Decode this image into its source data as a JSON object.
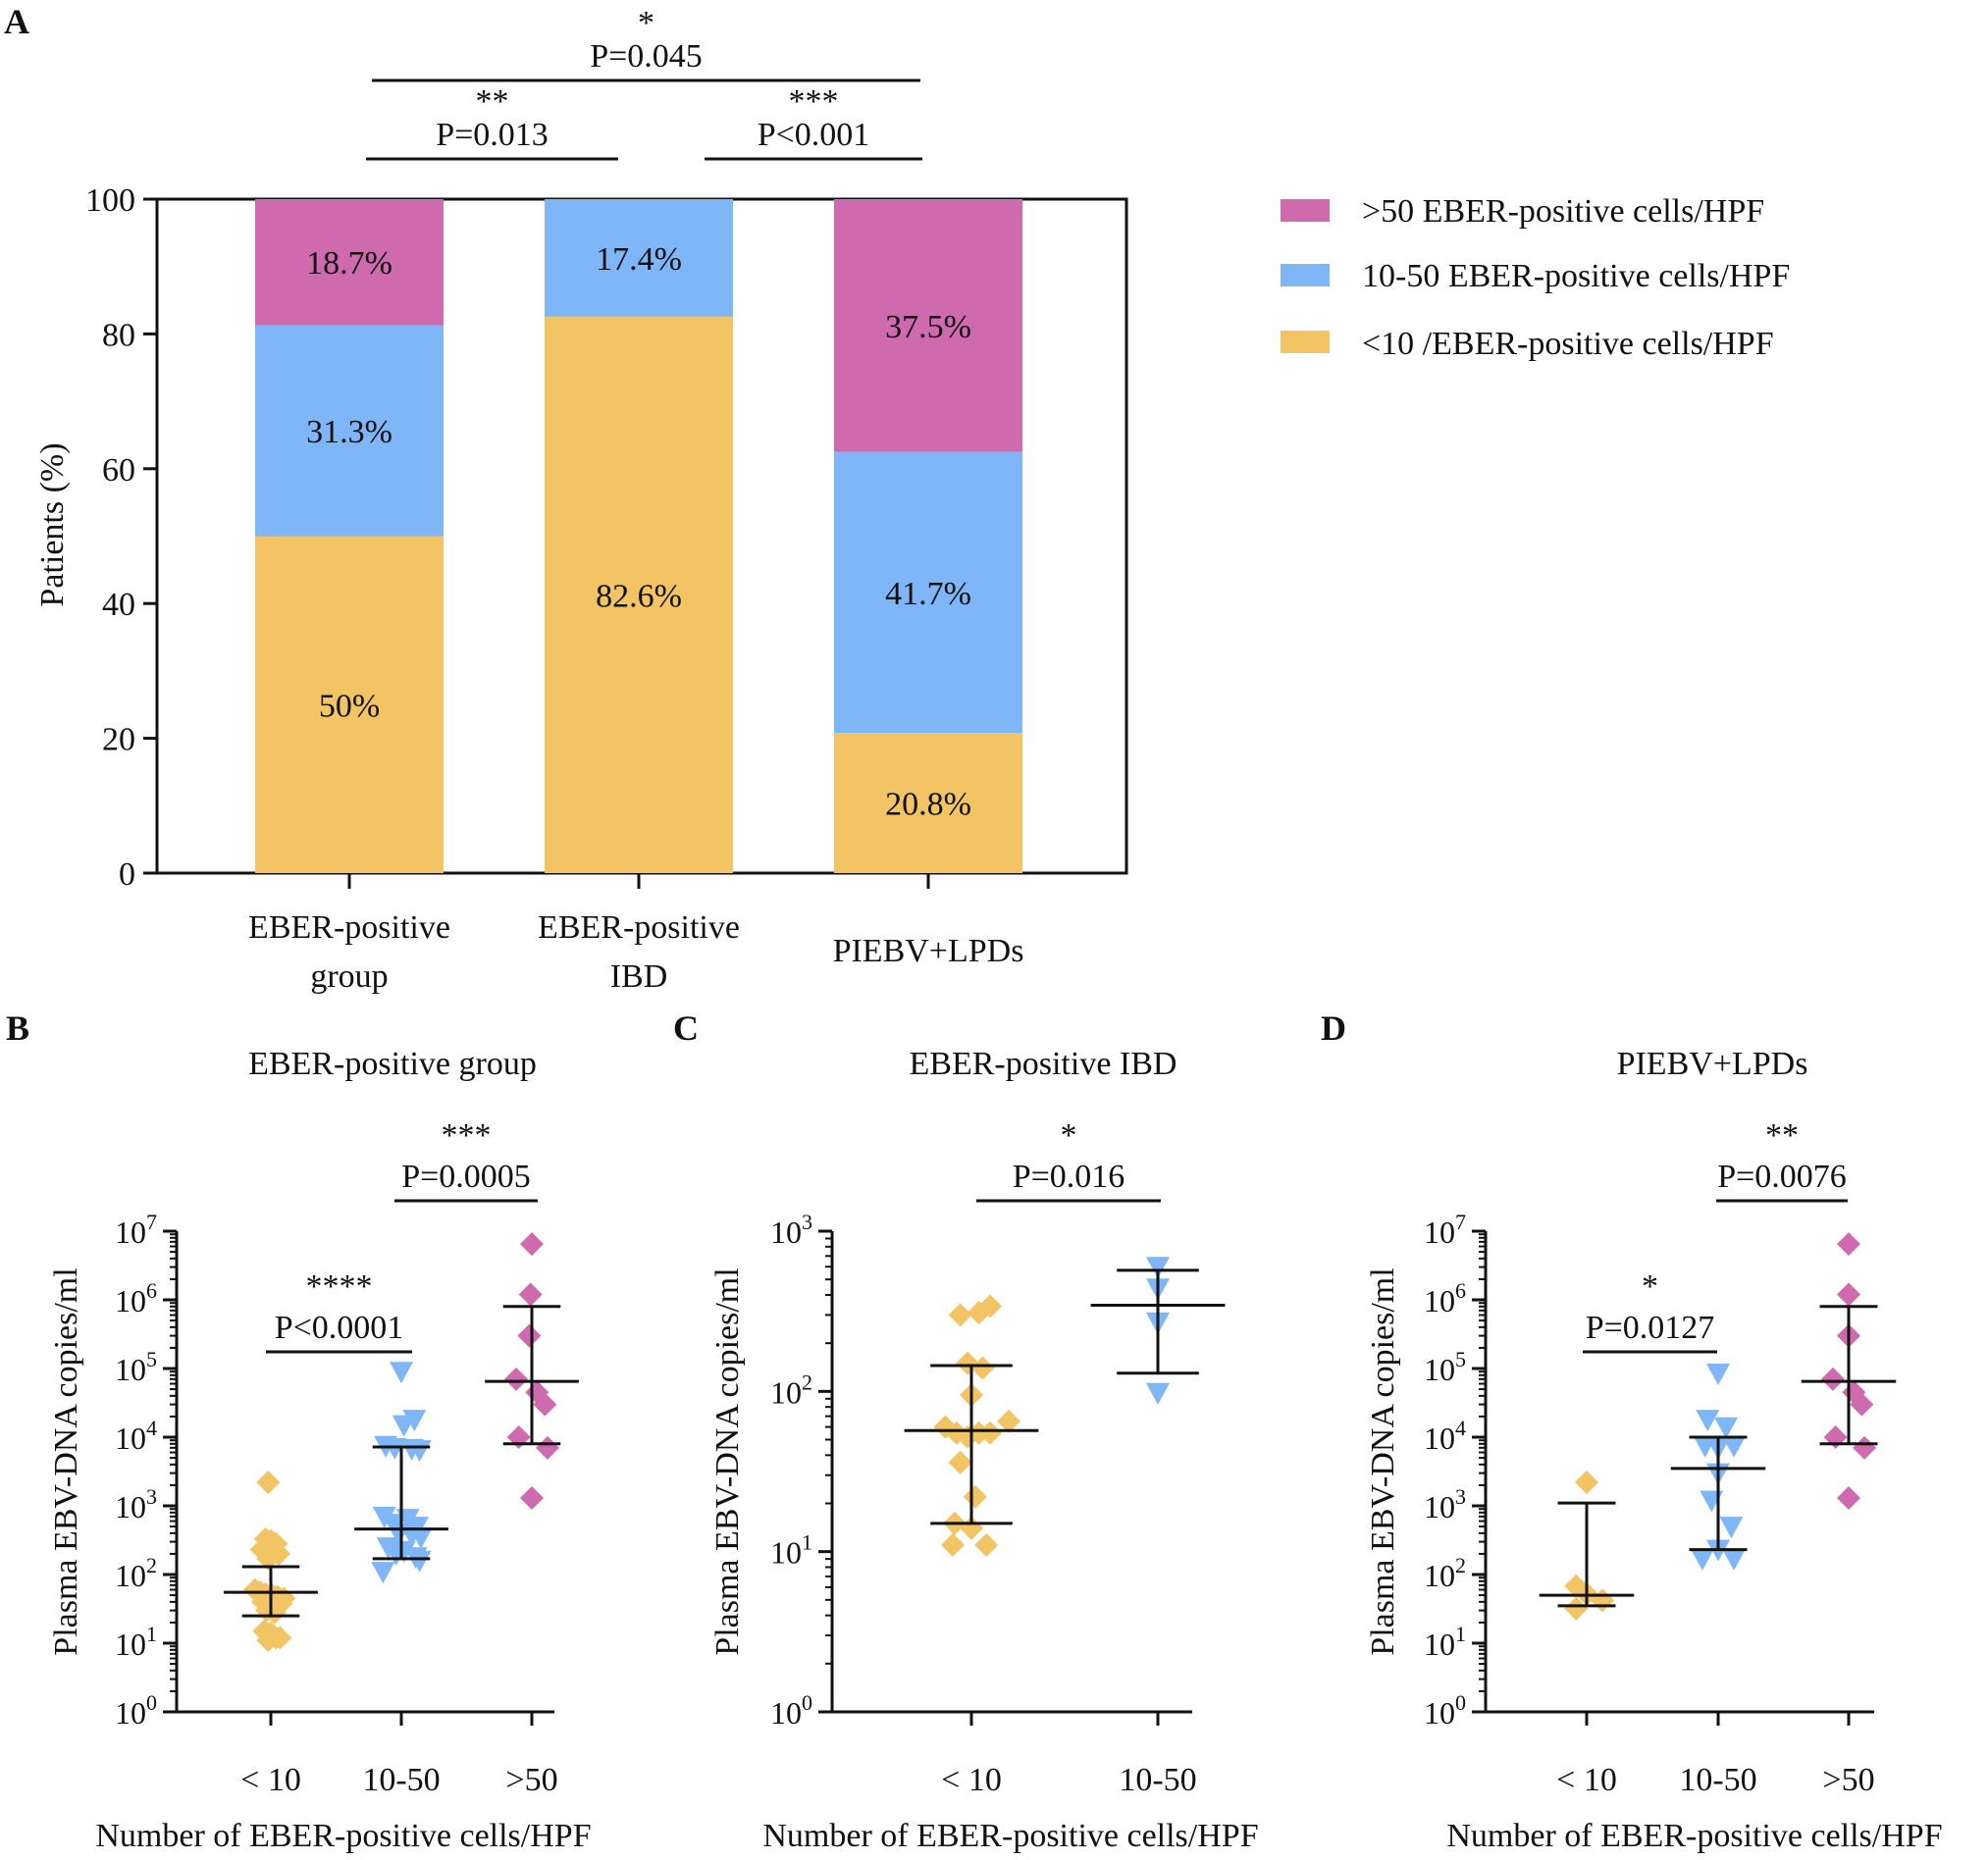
{
  "colors": {
    "high": "#cf6aae",
    "mid": "#7fb6f8",
    "low": "#f2c464",
    "axis": "#111111"
  },
  "chart_data": [
    {
      "panel": "A",
      "type": "bar",
      "stacked": true,
      "title": "",
      "ylabel": "Patients (%)",
      "ylim": [
        0,
        100
      ],
      "yticks": [
        0,
        20,
        40,
        60,
        80,
        100
      ],
      "categories": [
        [
          "EBER-positive",
          "group"
        ],
        [
          "EBER-positive",
          "IBD"
        ],
        [
          "PIEBV+LPDs"
        ]
      ],
      "series": [
        {
          "name": "<10 /EBER-positive cells/HPF",
          "color_key": "low",
          "values": [
            50,
            82.6,
            20.8
          ],
          "labels": [
            "50%",
            "82.6%",
            "20.8%"
          ]
        },
        {
          "name": "10-50 EBER-positive cells/HPF",
          "color_key": "mid",
          "values": [
            31.3,
            17.4,
            41.7
          ],
          "labels": [
            "31.3%",
            "17.4%",
            "41.7%"
          ]
        },
        {
          "name": ">50 EBER-positive cells/HPF",
          "color_key": "high",
          "values": [
            18.7,
            0,
            37.5
          ],
          "labels": [
            "18.7%",
            "",
            "37.5%"
          ]
        }
      ],
      "legend_order": [
        2,
        1,
        0
      ],
      "legend_position": "right",
      "significance": [
        {
          "from": 0,
          "to": 1,
          "stars": "**",
          "p": "P=0.013",
          "level": 1
        },
        {
          "from": 1,
          "to": 2,
          "stars": "***",
          "p": "P<0.001",
          "level": 1
        },
        {
          "from": 0,
          "to": 2,
          "stars": "*",
          "p": "P=0.045",
          "level": 2
        }
      ]
    },
    {
      "panel": "B",
      "type": "scatter",
      "scale": "log",
      "title": "EBER-positive group",
      "xlabel": "Number of EBER-positive cells/HPF",
      "ylabel": "Plasma EBV-DNA copies/ml",
      "ylim_exp": [
        0,
        7
      ],
      "categories": [
        "< 10",
        "10-50",
        ">50"
      ],
      "groups": [
        {
          "marker": "diamond",
          "color_key": "low",
          "points": [
            [
              -0.02,
              2200
            ],
            [
              -0.04,
              330
            ],
            [
              0.0,
              310
            ],
            [
              0.04,
              280
            ],
            [
              -0.07,
              230
            ],
            [
              0.06,
              200
            ],
            [
              -0.02,
              170
            ],
            [
              -0.12,
              60
            ],
            [
              -0.08,
              55
            ],
            [
              -0.04,
              52
            ],
            [
              0.01,
              50
            ],
            [
              0.05,
              48
            ],
            [
              0.1,
              45
            ],
            [
              -0.06,
              40
            ],
            [
              0.08,
              38
            ],
            [
              -0.03,
              30
            ],
            [
              0.03,
              28
            ],
            [
              -0.05,
              15
            ],
            [
              0.0,
              14
            ],
            [
              0.04,
              12
            ],
            [
              -0.02,
              11
            ],
            [
              0.07,
              12
            ]
          ],
          "median": 55,
          "q1": 25,
          "q3": 130
        },
        {
          "marker": "triangle-down",
          "color_key": "mid",
          "points": [
            [
              0.0,
              90000
            ],
            [
              0.1,
              18000
            ],
            [
              0.02,
              15000
            ],
            [
              -0.12,
              7500
            ],
            [
              -0.05,
              7000
            ],
            [
              0.08,
              6800
            ],
            [
              0.14,
              6500
            ],
            [
              -0.13,
              700
            ],
            [
              0.05,
              650
            ],
            [
              -0.06,
              550
            ],
            [
              0.12,
              500
            ],
            [
              -0.02,
              400
            ],
            [
              0.08,
              380
            ],
            [
              0.15,
              350
            ],
            [
              -0.1,
              250
            ],
            [
              0.02,
              220
            ],
            [
              -0.04,
              200
            ],
            [
              0.11,
              180
            ],
            [
              0.14,
              160
            ],
            [
              -0.14,
              110
            ]
          ],
          "median": 460,
          "q1": 170,
          "q3": 7200
        },
        {
          "marker": "diamond",
          "color_key": "high",
          "points": [
            [
              0.0,
              6500000
            ],
            [
              -0.01,
              1200000
            ],
            [
              -0.02,
              300000
            ],
            [
              -0.12,
              70000
            ],
            [
              0.04,
              45000
            ],
            [
              0.1,
              30000
            ],
            [
              -0.1,
              10000
            ],
            [
              0.12,
              7000
            ],
            [
              0.0,
              1300
            ]
          ],
          "median": 65000,
          "q1": 8000,
          "q3": 800000
        }
      ],
      "significance": [
        {
          "from": 0,
          "to": 1,
          "stars": "****",
          "p": "P<0.0001",
          "level": 1
        },
        {
          "from": 1,
          "to": 2,
          "stars": "***",
          "p": "P=0.0005",
          "level": 2
        }
      ]
    },
    {
      "panel": "C",
      "type": "scatter",
      "scale": "log",
      "title": "EBER-positive IBD",
      "xlabel": "Number of EBER-positive cells/HPF",
      "ylabel": "Plasma EBV-DNA copies/ml",
      "ylim_exp": [
        0,
        3
      ],
      "categories": [
        "< 10",
        "10-50"
      ],
      "groups": [
        {
          "marker": "diamond",
          "color_key": "low",
          "points": [
            [
              -0.06,
              300
            ],
            [
              0.04,
              310
            ],
            [
              0.1,
              340
            ],
            [
              -0.02,
              150
            ],
            [
              0.06,
              140
            ],
            [
              0.0,
              95
            ],
            [
              -0.14,
              60
            ],
            [
              -0.08,
              55
            ],
            [
              -0.02,
              52
            ],
            [
              0.04,
              55
            ],
            [
              0.1,
              55
            ],
            [
              0.2,
              65
            ],
            [
              -0.06,
              36
            ],
            [
              0.02,
              22
            ],
            [
              -0.09,
              15
            ],
            [
              0.0,
              14
            ],
            [
              -0.1,
              11
            ],
            [
              0.08,
              11
            ]
          ],
          "median": 57,
          "q1": 15,
          "q3": 145
        },
        {
          "marker": "triangle-down",
          "color_key": "mid",
          "points": [
            [
              0.0,
              600
            ],
            [
              0.0,
              440
            ],
            [
              0.0,
              270
            ],
            [
              0.0,
              98
            ]
          ],
          "median": 345,
          "q1": 130,
          "q3": 570
        }
      ],
      "significance": [
        {
          "from": 0,
          "to": 1,
          "stars": "*",
          "p": "P=0.016",
          "level": 2
        }
      ]
    },
    {
      "panel": "D",
      "type": "scatter",
      "scale": "log",
      "title": "PIEBV+LPDs",
      "xlabel": "Number of EBER-positive cells/HPF",
      "ylabel": "Plasma EBV-DNA copies/ml",
      "ylim_exp": [
        0,
        7
      ],
      "categories": [
        "< 10",
        "10-50",
        ">50"
      ],
      "groups": [
        {
          "marker": "diamond",
          "color_key": "low",
          "points": [
            [
              0.0,
              2200
            ],
            [
              -0.08,
              68
            ],
            [
              0.0,
              52
            ],
            [
              -0.08,
              32
            ],
            [
              0.12,
              42
            ]
          ],
          "median": 50,
          "q1": 35,
          "q3": 1100
        },
        {
          "marker": "triangle-down",
          "color_key": "mid",
          "points": [
            [
              0.0,
              85000
            ],
            [
              -0.08,
              18000
            ],
            [
              0.06,
              14000
            ],
            [
              -0.1,
              7500
            ],
            [
              0.0,
              7000
            ],
            [
              0.12,
              7500
            ],
            [
              0.0,
              3000
            ],
            [
              -0.05,
              1200
            ],
            [
              0.1,
              500
            ],
            [
              0.0,
              230
            ],
            [
              -0.12,
              170
            ],
            [
              0.12,
              170
            ]
          ],
          "median": 3500,
          "q1": 230,
          "q3": 10000
        },
        {
          "marker": "diamond",
          "color_key": "high",
          "points": [
            [
              0.0,
              6500000
            ],
            [
              0.0,
              1200000
            ],
            [
              0.0,
              300000
            ],
            [
              -0.12,
              70000
            ],
            [
              0.04,
              45000
            ],
            [
              0.1,
              30000
            ],
            [
              -0.1,
              10000
            ],
            [
              0.12,
              7000
            ],
            [
              0.0,
              1300
            ]
          ],
          "median": 65000,
          "q1": 8000,
          "q3": 800000
        }
      ],
      "significance": [
        {
          "from": 0,
          "to": 1,
          "stars": "*",
          "p": "P=0.0127",
          "level": 1
        },
        {
          "from": 1,
          "to": 2,
          "stars": "**",
          "p": "P=0.0076",
          "level": 2
        }
      ]
    }
  ]
}
